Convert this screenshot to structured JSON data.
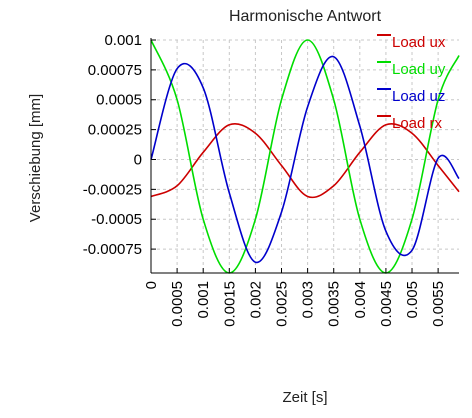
{
  "chart_data": {
    "type": "line",
    "title": "Harmonische Antwort",
    "xlabel": "Zeit [s]",
    "ylabel": "Verschiebung [mm]",
    "xlim": [
      0,
      0.0059
    ],
    "ylim": [
      -0.00095,
      0.001
    ],
    "x_ticks": [
      "0",
      "0.0005",
      "0.001",
      "0.0015",
      "0.002",
      "0.0025",
      "0.003",
      "0.0035",
      "0.004",
      "0.0045",
      "0.005",
      "0.0055"
    ],
    "y_ticks": [
      "0.001",
      "0.00075",
      "0.0005",
      "0.00025",
      "0",
      "-0.00025",
      "-0.0005",
      "-0.00075"
    ],
    "grid": true,
    "legend_position": "top-right",
    "series": [
      {
        "name": "Load ux",
        "color": "#cc0000",
        "x": [
          0,
          0.0005,
          0.001,
          0.0015,
          0.002,
          0.0025,
          0.003,
          0.0035,
          0.004,
          0.0045,
          0.005,
          0.0055,
          0.0059
        ],
        "y": [
          -0.00031,
          -0.00022,
          6e-05,
          0.00029,
          0.00022,
          -5e-05,
          -0.00031,
          -0.00022,
          6e-05,
          0.00029,
          0.00022,
          -5e-05,
          -0.00027
        ]
      },
      {
        "name": "Load uy",
        "color": "#00dd00",
        "x": [
          0,
          0.0005,
          0.001,
          0.0015,
          0.002,
          0.0025,
          0.003,
          0.0035,
          0.004,
          0.0045,
          0.005,
          0.0055,
          0.0059
        ],
        "y": [
          0.001,
          0.0005,
          -0.0005,
          -0.00095,
          -0.0005,
          0.0005,
          0.001,
          0.0005,
          -0.0005,
          -0.00095,
          -0.0005,
          0.0005,
          0.00087
        ]
      },
      {
        "name": "Load uz",
        "color": "#0000cc",
        "x": [
          0,
          0.0005,
          0.001,
          0.0015,
          0.002,
          0.0025,
          0.003,
          0.0035,
          0.004,
          0.0045,
          0.005,
          0.0055,
          0.0059
        ],
        "y": [
          0,
          0.00076,
          0.0006,
          -0.00028,
          -0.00086,
          -0.00044,
          0.00044,
          0.00086,
          0.00028,
          -0.0006,
          -0.00076,
          1e-05,
          -0.00016
        ]
      },
      {
        "name": "Load rx",
        "color": "#cc0000",
        "x": [],
        "y": []
      }
    ]
  }
}
